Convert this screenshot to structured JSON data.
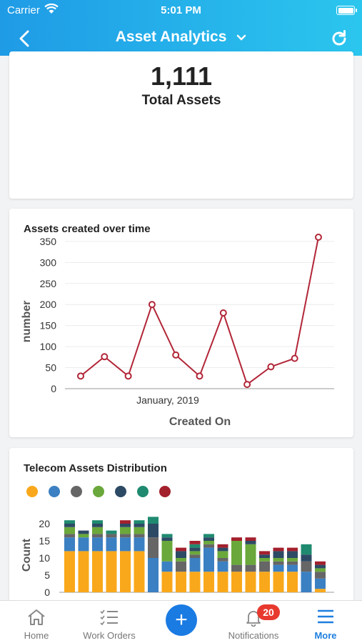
{
  "status_bar": {
    "carrier": "Carrier",
    "time": "5:01 PM"
  },
  "nav": {
    "title": "Asset Analytics"
  },
  "summary": {
    "value": "1,111",
    "label": "Total Assets"
  },
  "chart_data": [
    {
      "type": "line",
      "title": "Assets created over time",
      "xlabel": "Created On",
      "ylabel": "number",
      "x_tick_labels": [
        "January, 2019"
      ],
      "y_ticks": [
        0,
        50,
        100,
        150,
        200,
        250,
        300,
        350
      ],
      "ylim": [
        0,
        360
      ],
      "grid": true,
      "line_color": "#b22638",
      "series": [
        {
          "values": [
            30,
            76,
            30,
            200,
            80,
            30,
            180,
            10,
            52,
            72,
            360
          ]
        }
      ]
    },
    {
      "type": "bar",
      "stacked": true,
      "title": "Telecom Assets Distribution",
      "ylabel": "Count",
      "y_ticks": [
        0,
        5,
        10,
        15,
        20
      ],
      "ylim": [
        0,
        21
      ],
      "legend_position": "top-left",
      "series": [
        {
          "color": "#f9a81b",
          "values": [
            12,
            12,
            12,
            12,
            12,
            12,
            0,
            6,
            6,
            6,
            6,
            6,
            6,
            6,
            6,
            6,
            6,
            0,
            1
          ]
        },
        {
          "color": "#3b80c2",
          "values": [
            4,
            4,
            4,
            4,
            4,
            4,
            10,
            3,
            0,
            4,
            7,
            3,
            0,
            0,
            0,
            2,
            2,
            6,
            3
          ]
        },
        {
          "color": "#666666",
          "values": [
            1,
            0,
            1,
            1,
            1,
            1,
            6,
            0,
            3,
            1,
            1,
            1,
            2,
            2,
            3,
            1,
            1,
            3,
            2
          ]
        },
        {
          "color": "#6aa83b",
          "values": [
            2,
            1,
            2,
            0,
            2,
            2,
            0,
            6,
            1,
            1,
            1,
            2,
            7,
            6,
            1,
            1,
            1,
            0,
            1
          ]
        },
        {
          "color": "#2d4a65",
          "values": [
            1,
            1,
            1,
            0,
            1,
            1,
            4,
            1,
            2,
            1,
            1,
            1,
            0,
            1,
            1,
            2,
            2,
            2,
            1
          ]
        },
        {
          "color": "#1f8a70",
          "values": [
            1,
            0,
            1,
            1,
            0,
            1,
            2,
            1,
            0,
            1,
            1,
            0,
            0,
            0,
            0,
            0,
            0,
            3,
            0
          ]
        },
        {
          "color": "#a3202d",
          "values": [
            0,
            0,
            0,
            0,
            1,
            0,
            0,
            0,
            1,
            1,
            0,
            1,
            1,
            1,
            1,
            1,
            1,
            0,
            1
          ]
        }
      ]
    }
  ],
  "tabs": [
    {
      "label": "Home",
      "icon": "home-icon"
    },
    {
      "label": "Work Orders",
      "icon": "checklist-icon"
    },
    {
      "label": "Notifications",
      "icon": "bell-icon",
      "badge": "20"
    },
    {
      "label": "More",
      "icon": "menu-icon"
    }
  ],
  "colors": {
    "header_start": "#1f9be6",
    "header_end": "#2bc6ee",
    "accent": "#1a7be3",
    "badge": "#e8392f"
  }
}
